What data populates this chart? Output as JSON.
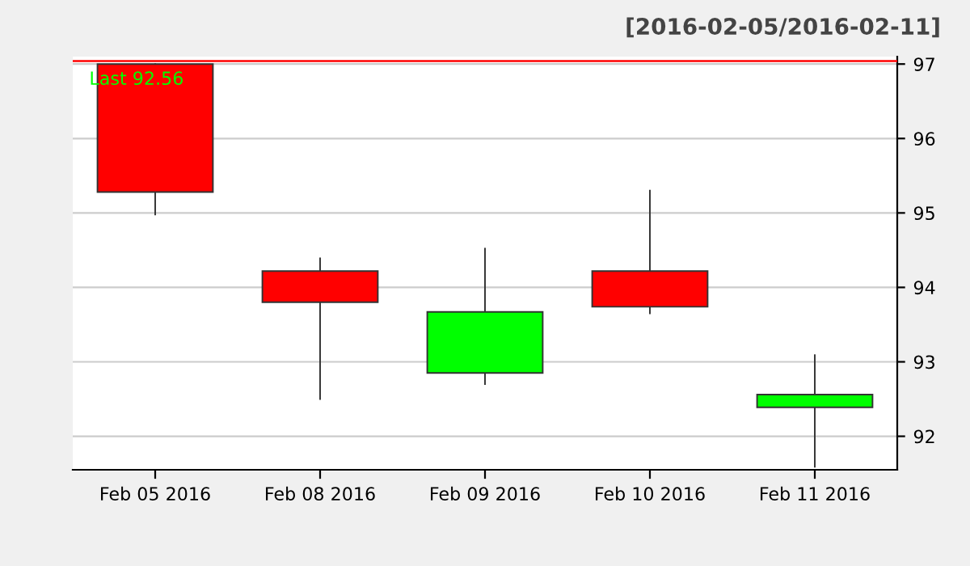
{
  "chart_data": {
    "type": "candlestick",
    "subtitle": "[2016-02-05/2016-02-11]",
    "categories": [
      "Feb 05 2016",
      "Feb 08 2016",
      "Feb 09 2016",
      "Feb 10 2016",
      "Feb 11 2016"
    ],
    "ohlc": [
      [
        97.0,
        97.0,
        94.98,
        95.28
      ],
      [
        94.22,
        94.39,
        92.5,
        93.8
      ],
      [
        92.85,
        94.52,
        92.7,
        93.67
      ],
      [
        94.22,
        95.3,
        93.65,
        93.74
      ],
      [
        92.39,
        93.09,
        91.59,
        92.56
      ]
    ],
    "colors": [
      "#ff0000",
      "#ff0000",
      "#00ff00",
      "#ff0000",
      "#00ff00"
    ],
    "ylim": [
      91.55,
      97.1
    ],
    "yticks": [
      92,
      93,
      94,
      95,
      96,
      97
    ],
    "grid": "y",
    "ref_lines": [
      {
        "axis": "y",
        "value": 97.04,
        "label": null,
        "color": "#ff0000"
      }
    ],
    "annotations": [
      "Last 92.56"
    ]
  }
}
